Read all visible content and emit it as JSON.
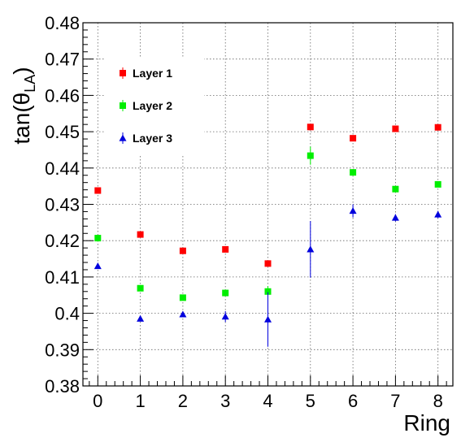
{
  "chart_data": {
    "type": "scatter",
    "title": "",
    "xlabel": "Ring",
    "ylabel_main": "tan(θ",
    "ylabel_sub": "LA",
    "ylabel_close": ")",
    "xlim": [
      -0.35,
      8.35
    ],
    "ylim": [
      0.38,
      0.48
    ],
    "x_ticks": [
      0,
      1,
      2,
      3,
      4,
      5,
      6,
      7,
      8
    ],
    "x_tick_labels": [
      "0",
      "1",
      "2",
      "3",
      "4",
      "5",
      "6",
      "7",
      "8"
    ],
    "y_ticks": [
      0.38,
      0.39,
      0.4,
      0.41,
      0.42,
      0.43,
      0.44,
      0.45,
      0.46,
      0.47,
      0.48
    ],
    "y_tick_labels": [
      "0.38",
      "0.39",
      "0.4",
      "0.41",
      "0.42",
      "0.43",
      "0.44",
      "0.45",
      "0.46",
      "0.47",
      "0.48"
    ],
    "grid": true,
    "legend_position": "top-left",
    "series": [
      {
        "name": "Layer 1",
        "color": "#ff0000",
        "marker": "square",
        "x": [
          0,
          1,
          2,
          3,
          4,
          5,
          6,
          7,
          8
        ],
        "y": [
          0.4338,
          0.4217,
          0.4172,
          0.4176,
          0.4137,
          0.4513,
          0.4482,
          0.4508,
          0.4512
        ],
        "yerr": [
          0.0005,
          0.0005,
          0.0005,
          0.0005,
          0.0005,
          0.0005,
          0.0005,
          0.0005,
          0.0005
        ]
      },
      {
        "name": "Layer 2",
        "color": "#00ee00",
        "marker": "square",
        "x": [
          0,
          1,
          2,
          3,
          4,
          5,
          6,
          7,
          8
        ],
        "y": [
          0.4207,
          0.4069,
          0.4043,
          0.4056,
          0.406,
          0.4434,
          0.4388,
          0.4342,
          0.4355
        ],
        "yerr": [
          0.0005,
          0.0005,
          0.0005,
          0.0005,
          0.0015,
          0.0025,
          0.0008,
          0.0005,
          0.0005
        ]
      },
      {
        "name": "Layer 3",
        "color": "#0000dd",
        "marker": "triangle",
        "x": [
          0,
          1,
          2,
          3,
          4,
          5,
          6,
          7,
          8
        ],
        "y": [
          0.413,
          0.3985,
          0.3997,
          0.3991,
          0.3983,
          0.4176,
          0.4282,
          0.4263,
          0.4272
        ],
        "yerr": [
          0.0005,
          0.0005,
          0.0008,
          0.0015,
          0.0075,
          0.0078,
          0.0018,
          0.001,
          0.001
        ]
      }
    ]
  }
}
